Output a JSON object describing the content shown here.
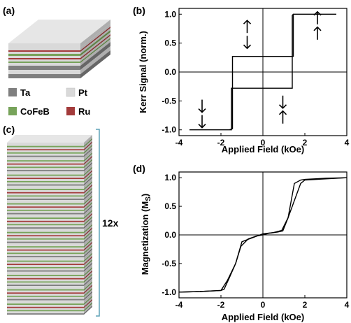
{
  "panel_labels": {
    "a": "(a)",
    "b": "(b)",
    "c": "(c)",
    "d": "(d)"
  },
  "legend": [
    {
      "label": "Ta",
      "color": "#7f7f7f"
    },
    {
      "label": "Pt",
      "color": "#d9d9d9"
    },
    {
      "label": "CoFeB",
      "color": "#77a35a"
    },
    {
      "label": "Ru",
      "color": "#a33b3b"
    }
  ],
  "stack_label": "12x",
  "chart_data": [
    {
      "type": "line",
      "panel": "(b)",
      "xlabel": "Applied Field (kOe)",
      "ylabel": "Kerr Signal (norm.)",
      "xlim": [
        -4,
        4
      ],
      "ylim": [
        -1.1,
        1.1
      ],
      "xticks": [
        "-4",
        "-2",
        "0",
        "2",
        "4"
      ],
      "yticks": [
        "1.0",
        "0.5",
        "0.0",
        "-0.5",
        "-1.0"
      ],
      "series": [
        {
          "values": {
            "x": [
              -3.5,
              -1.6,
              -1.45,
              -1.45,
              1.4,
              1.45,
              1.45,
              3.5,
              1.45,
              1.4,
              1.4,
              -1.45,
              -1.5,
              -1.5,
              -3.5
            ],
            "y": [
              -1.0,
              -1.0,
              -0.98,
              0.27,
              0.27,
              0.27,
              1.0,
              1.0,
              1.0,
              0.98,
              -0.28,
              -0.28,
              -0.28,
              -1.0,
              -1.0
            ]
          }
        }
      ],
      "arrow_annotations": [
        "↓↓",
        "↑↓",
        "↓↑",
        "↑↑"
      ]
    },
    {
      "type": "line",
      "panel": "(d)",
      "xlabel": "Applied Field (kOe)",
      "ylabel": "Magnetization (M_S)",
      "xlim": [
        -4,
        4
      ],
      "ylim": [
        -1.1,
        1.1
      ],
      "xticks": [
        "-4",
        "-2",
        "0",
        "2",
        "4"
      ],
      "yticks": [
        "1.0",
        "0.5",
        "0.0",
        "-0.5",
        "-1.0"
      ],
      "series": [
        {
          "values": {
            "x": [
              -4.0,
              -3.0,
              -2.0,
              -1.7,
              -1.3,
              -1.05,
              -0.7,
              -0.3,
              0.0,
              0.3,
              0.7,
              0.95,
              1.2,
              1.5,
              1.8,
              2.0,
              3.0,
              4.0
            ],
            "y": [
              -1.0,
              -0.99,
              -0.97,
              -0.8,
              -0.5,
              -0.2,
              -0.07,
              -0.02,
              0.0,
              0.03,
              0.05,
              0.07,
              0.3,
              0.6,
              0.9,
              0.96,
              0.98,
              1.0
            ]
          }
        },
        {
          "values": {
            "x": [
              4.0,
              3.0,
              2.0,
              1.8,
              1.5,
              1.2,
              0.9,
              0.5,
              0.0,
              -0.5,
              -0.8,
              -1.0,
              -1.3,
              -1.6,
              -1.85,
              -2.0,
              -3.0,
              -4.0
            ],
            "y": [
              1.0,
              0.99,
              0.97,
              0.96,
              0.9,
              0.3,
              0.08,
              0.04,
              0.02,
              -0.05,
              -0.09,
              -0.12,
              -0.5,
              -0.75,
              -0.95,
              -0.97,
              -0.99,
              -1.0
            ]
          }
        }
      ]
    }
  ]
}
